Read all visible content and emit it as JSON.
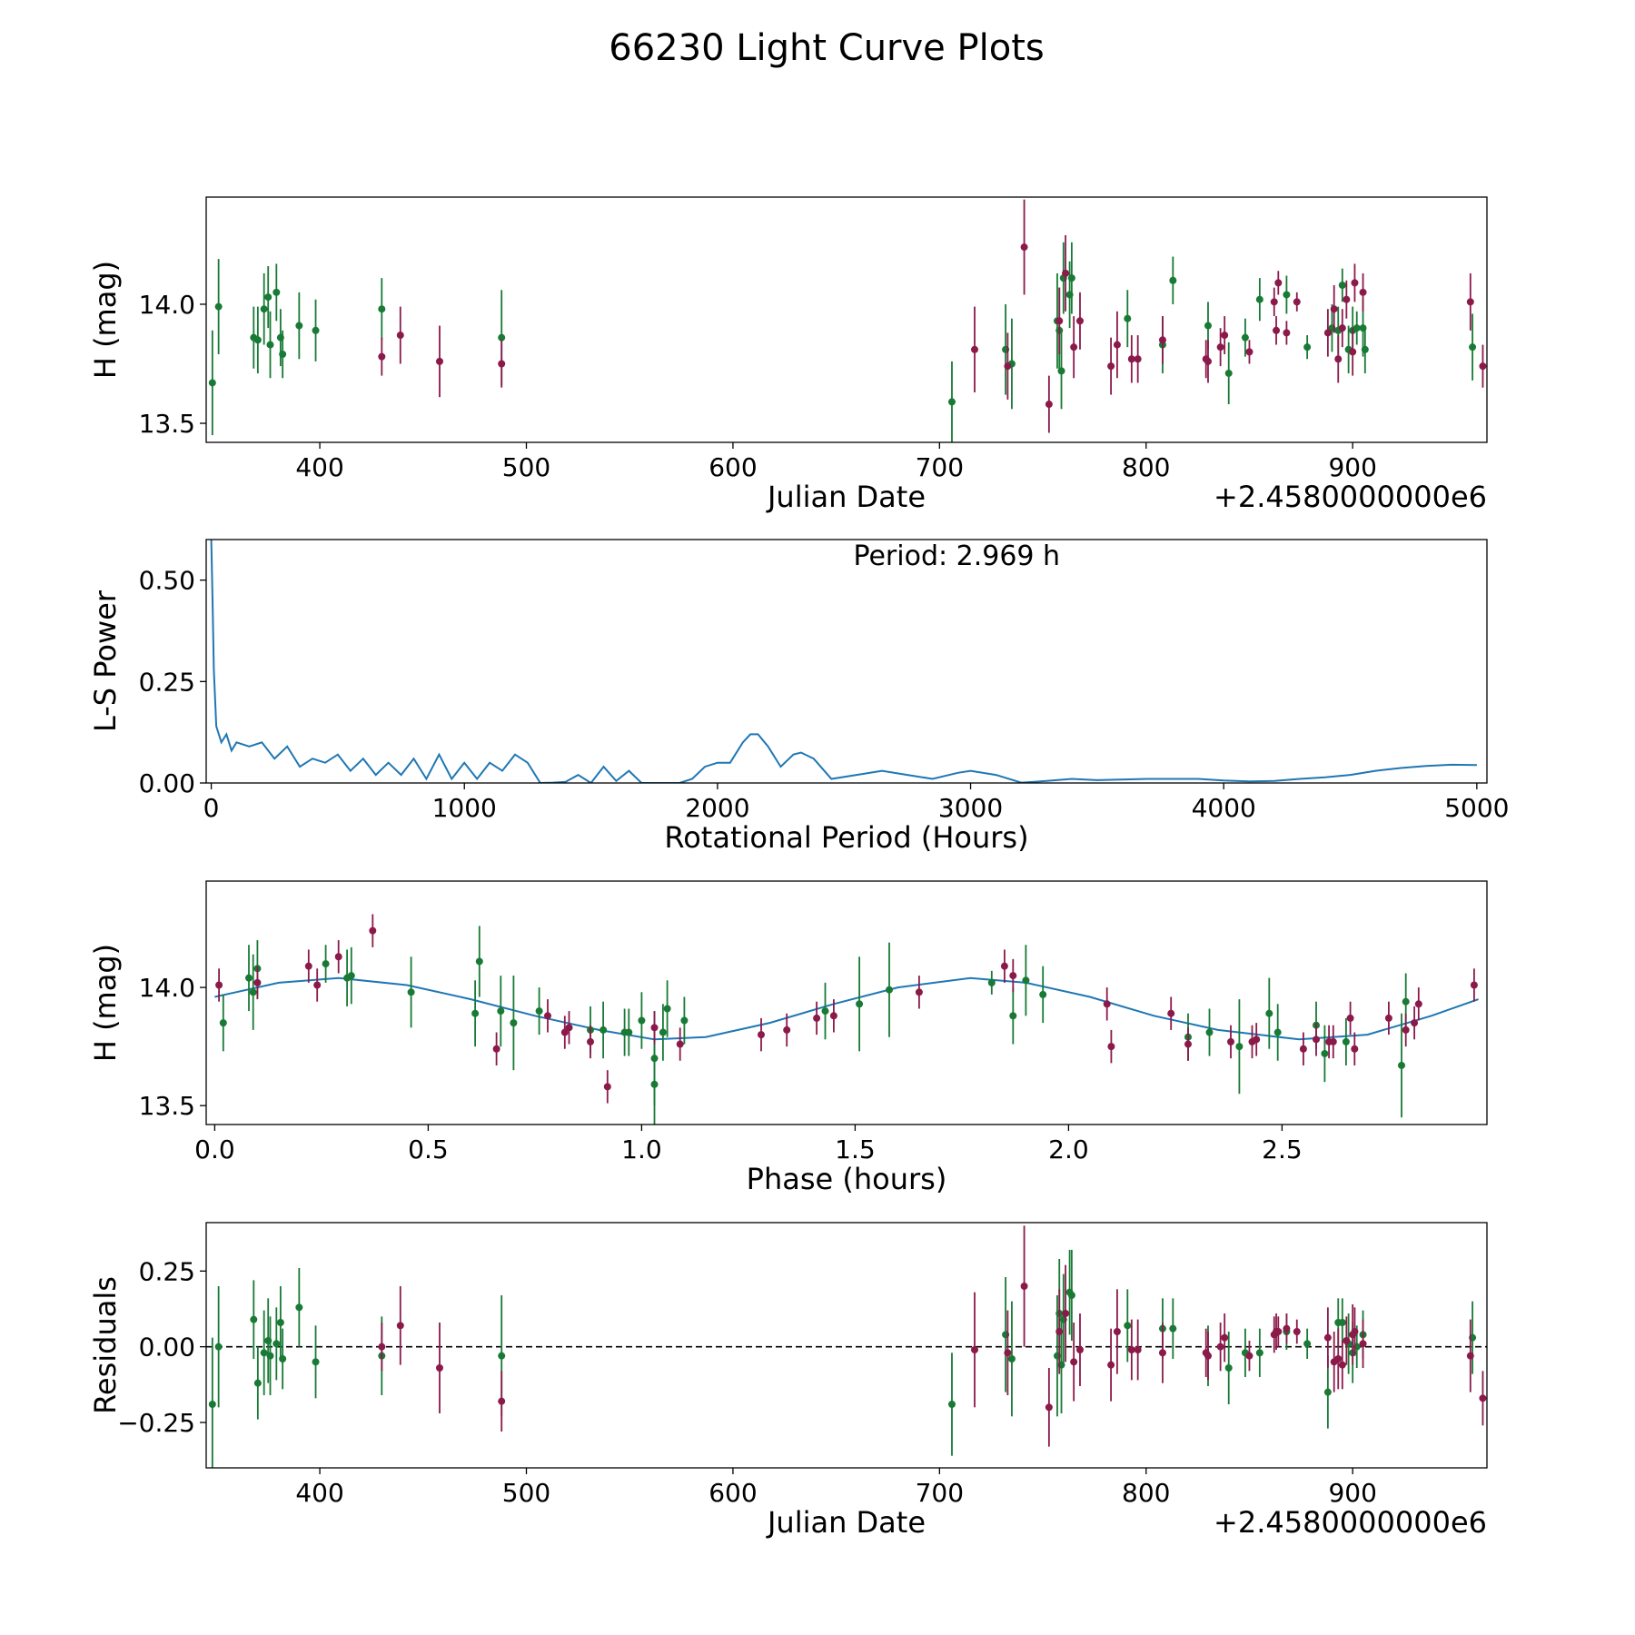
{
  "title": "66230 Light Curve Plots",
  "colors": {
    "green": "#187a35",
    "maroon": "#8b1a4b",
    "curve": "#1f77b4",
    "frame": "#000000"
  },
  "chart_data": [
    {
      "id": "lightcurve",
      "type": "scatter",
      "title": "",
      "xlabel": "Julian Date",
      "ylabel": "H (mag)",
      "offset_text": "+2.4580000000e6",
      "xlim": [
        345,
        965
      ],
      "ylim": [
        13.42,
        14.45
      ],
      "xticks": [
        400,
        500,
        600,
        700,
        800,
        900
      ],
      "xtick_labels": [
        "400",
        "500",
        "600",
        "700",
        "800",
        "900"
      ],
      "yticks": [
        13.5,
        14.0
      ],
      "ytick_labels": [
        "13.5",
        "14.0"
      ],
      "series": [
        {
          "name": "green",
          "color": "green",
          "x": [
            348,
            351,
            368,
            370,
            373,
            375,
            376,
            379,
            381,
            382,
            390,
            398,
            430,
            488,
            706,
            732,
            735,
            757,
            758,
            759,
            760,
            763,
            764,
            791,
            808,
            813,
            830,
            840,
            848,
            855,
            868,
            878,
            890,
            893,
            895,
            898,
            900,
            902,
            905,
            906,
            958
          ],
          "y": [
            13.67,
            13.99,
            13.86,
            13.85,
            13.98,
            14.03,
            13.83,
            14.05,
            13.86,
            13.79,
            13.91,
            13.89,
            13.98,
            13.86,
            13.59,
            13.81,
            13.75,
            13.93,
            13.89,
            13.72,
            14.11,
            14.04,
            14.11,
            13.94,
            13.83,
            14.1,
            13.91,
            13.71,
            13.86,
            14.02,
            14.04,
            13.82,
            13.9,
            13.89,
            14.08,
            13.81,
            13.89,
            13.9,
            13.9,
            13.81,
            13.82
          ],
          "err": [
            0.22,
            0.2,
            0.13,
            0.14,
            0.15,
            0.13,
            0.14,
            0.12,
            0.12,
            0.1,
            0.14,
            0.13,
            0.13,
            0.2,
            0.17,
            0.19,
            0.19,
            0.2,
            0.18,
            0.16,
            0.15,
            0.14,
            0.15,
            0.12,
            0.12,
            0.1,
            0.1,
            0.13,
            0.08,
            0.09,
            0.08,
            0.05,
            0.1,
            0.1,
            0.07,
            0.1,
            0.1,
            0.07,
            0.12,
            0.1,
            0.14
          ]
        },
        {
          "name": "maroon",
          "color": "maroon",
          "x": [
            430,
            439,
            458,
            488,
            717,
            733,
            741,
            753,
            758,
            761,
            765,
            768,
            783,
            786,
            793,
            796,
            808,
            829,
            830,
            836,
            838,
            850,
            862,
            863,
            864,
            868,
            873,
            888,
            891,
            893,
            895,
            897,
            900,
            901,
            905,
            957,
            963
          ],
          "y": [
            13.78,
            13.87,
            13.76,
            13.75,
            13.81,
            13.74,
            14.24,
            13.58,
            13.93,
            14.13,
            13.82,
            13.93,
            13.74,
            13.83,
            13.77,
            13.77,
            13.85,
            13.77,
            13.76,
            13.82,
            13.87,
            13.8,
            14.01,
            13.89,
            14.09,
            13.88,
            14.01,
            13.88,
            13.98,
            13.77,
            13.9,
            14.02,
            13.8,
            14.09,
            14.05,
            14.01,
            13.74
          ],
          "err": [
            0.08,
            0.12,
            0.15,
            0.1,
            0.18,
            0.14,
            0.2,
            0.12,
            0.14,
            0.16,
            0.13,
            0.12,
            0.12,
            0.14,
            0.1,
            0.1,
            0.1,
            0.08,
            0.09,
            0.08,
            0.08,
            0.05,
            0.06,
            0.06,
            0.05,
            0.05,
            0.04,
            0.1,
            0.1,
            0.1,
            0.08,
            0.08,
            0.1,
            0.08,
            0.08,
            0.12,
            0.09
          ]
        }
      ]
    },
    {
      "id": "periodogram",
      "type": "line",
      "title": "",
      "annotation": "Period: 2.969 h",
      "xlabel": "Rotational Period (Hours)",
      "ylabel": "L-S Power",
      "xlim": [
        -20,
        5040
      ],
      "ylim": [
        0,
        0.6
      ],
      "xticks": [
        0,
        1000,
        2000,
        3000,
        4000,
        5000
      ],
      "xtick_labels": [
        "0",
        "1000",
        "2000",
        "3000",
        "4000",
        "5000"
      ],
      "yticks": [
        0,
        0.25,
        0.5
      ],
      "ytick_labels": [
        "0.00",
        "0.25",
        "0.50"
      ],
      "color": "curve",
      "x": [
        0,
        5,
        10,
        20,
        40,
        60,
        80,
        100,
        150,
        200,
        250,
        300,
        350,
        400,
        450,
        500,
        550,
        600,
        650,
        700,
        750,
        800,
        850,
        900,
        950,
        1000,
        1050,
        1100,
        1150,
        1200,
        1250,
        1300,
        1350,
        1400,
        1450,
        1500,
        1550,
        1600,
        1650,
        1700,
        1750,
        1800,
        1850,
        1900,
        1950,
        2000,
        2050,
        2100,
        2130,
        2160,
        2200,
        2250,
        2300,
        2330,
        2380,
        2450,
        2550,
        2650,
        2750,
        2850,
        2950,
        3000,
        3100,
        3200,
        3300,
        3400,
        3500,
        3700,
        3900,
        4000,
        4100,
        4200,
        4300,
        4400,
        4500,
        4600,
        4700,
        4800,
        4900,
        5000
      ],
      "y": [
        0.6,
        0.45,
        0.28,
        0.14,
        0.1,
        0.12,
        0.08,
        0.1,
        0.09,
        0.1,
        0.06,
        0.09,
        0.04,
        0.06,
        0.05,
        0.07,
        0.03,
        0.06,
        0.02,
        0.05,
        0.02,
        0.06,
        0.01,
        0.07,
        0.01,
        0.05,
        0.01,
        0.05,
        0.03,
        0.07,
        0.05,
        0.0,
        0.001,
        0.003,
        0.02,
        0.0,
        0.04,
        0.005,
        0.03,
        0.0,
        0.0,
        0.0,
        0.0,
        0.01,
        0.04,
        0.05,
        0.05,
        0.1,
        0.12,
        0.12,
        0.09,
        0.04,
        0.07,
        0.075,
        0.06,
        0.01,
        0.02,
        0.03,
        0.02,
        0.01,
        0.025,
        0.03,
        0.02,
        0.001,
        0.005,
        0.01,
        0.007,
        0.01,
        0.01,
        0.006,
        0.004,
        0.005,
        0.01,
        0.014,
        0.02,
        0.03,
        0.037,
        0.042,
        0.045,
        0.044
      ]
    },
    {
      "id": "phased",
      "type": "scatter",
      "title": "",
      "xlabel": "Phase (hours)",
      "ylabel": "H (mag)",
      "xlim": [
        -0.02,
        2.98
      ],
      "ylim": [
        13.42,
        14.45
      ],
      "xticks": [
        0.0,
        0.5,
        1.0,
        1.5,
        2.0,
        2.5
      ],
      "xtick_labels": [
        "0.0",
        "0.5",
        "1.0",
        "1.5",
        "2.0",
        "2.5"
      ],
      "yticks": [
        13.5,
        14.0
      ],
      "ytick_labels": [
        "13.5",
        "14.0"
      ],
      "fit": {
        "name": "model",
        "color": "curve",
        "x": [
          0.0,
          0.15,
          0.29,
          0.45,
          0.6,
          0.75,
          0.9,
          1.03,
          1.15,
          1.3,
          1.45,
          1.6,
          1.77,
          1.9,
          2.05,
          2.2,
          2.35,
          2.54,
          2.7,
          2.85,
          2.96
        ],
        "y": [
          13.96,
          14.02,
          14.04,
          14.01,
          13.95,
          13.88,
          13.82,
          13.78,
          13.79,
          13.85,
          13.93,
          14.0,
          14.04,
          14.02,
          13.96,
          13.88,
          13.82,
          13.78,
          13.8,
          13.88,
          13.95
        ]
      },
      "series": [
        {
          "name": "green",
          "color": "green",
          "x": [
            0.02,
            0.08,
            0.09,
            0.1,
            0.26,
            0.31,
            0.32,
            0.46,
            0.61,
            0.62,
            0.67,
            0.7,
            0.76,
            0.88,
            0.91,
            0.96,
            0.97,
            1.0,
            1.03,
            1.03,
            1.05,
            1.06,
            1.1,
            1.43,
            1.51,
            1.58,
            1.82,
            1.87,
            1.9,
            1.94,
            2.28,
            2.33,
            2.4,
            2.47,
            2.49,
            2.58,
            2.6,
            2.65,
            2.78,
            2.79
          ],
          "y": [
            13.85,
            14.04,
            13.98,
            14.08,
            14.1,
            14.04,
            14.05,
            13.98,
            13.89,
            14.11,
            13.9,
            13.85,
            13.9,
            13.82,
            13.82,
            13.81,
            13.81,
            13.86,
            13.59,
            13.7,
            13.81,
            13.91,
            13.86,
            13.9,
            13.93,
            13.99,
            14.02,
            13.88,
            14.03,
            13.97,
            13.79,
            13.81,
            13.75,
            13.89,
            13.81,
            13.84,
            13.72,
            13.77,
            13.67,
            13.94
          ],
          "err": [
            0.12,
            0.14,
            0.16,
            0.12,
            0.08,
            0.12,
            0.12,
            0.15,
            0.14,
            0.15,
            0.15,
            0.2,
            0.1,
            0.1,
            0.12,
            0.1,
            0.1,
            0.12,
            0.2,
            0.2,
            0.12,
            0.12,
            0.1,
            0.12,
            0.2,
            0.2,
            0.05,
            0.12,
            0.15,
            0.12,
            0.1,
            0.1,
            0.2,
            0.15,
            0.12,
            0.1,
            0.12,
            0.1,
            0.22,
            0.12
          ]
        },
        {
          "name": "maroon",
          "color": "maroon",
          "x": [
            0.01,
            0.1,
            0.22,
            0.24,
            0.29,
            0.37,
            0.66,
            0.78,
            0.82,
            0.83,
            0.88,
            0.92,
            1.03,
            1.09,
            1.28,
            1.34,
            1.41,
            1.45,
            1.65,
            1.85,
            1.87,
            2.09,
            2.1,
            2.24,
            2.28,
            2.38,
            2.43,
            2.44,
            2.55,
            2.58,
            2.61,
            2.62,
            2.66,
            2.67,
            2.75,
            2.79,
            2.81,
            2.82,
            2.95
          ],
          "y": [
            14.01,
            14.02,
            14.09,
            14.01,
            14.13,
            14.24,
            13.74,
            13.88,
            13.81,
            13.83,
            13.77,
            13.58,
            13.83,
            13.76,
            13.8,
            13.82,
            13.87,
            13.88,
            13.98,
            14.09,
            14.05,
            13.93,
            13.75,
            13.89,
            13.76,
            13.77,
            13.77,
            13.78,
            13.74,
            13.78,
            13.77,
            13.77,
            13.87,
            13.74,
            13.87,
            13.82,
            13.85,
            13.93,
            14.01
          ]
        }
      ]
    },
    {
      "id": "residuals",
      "type": "scatter",
      "title": "",
      "xlabel": "Julian Date",
      "ylabel": "Residuals",
      "offset_text": "+2.4580000000e6",
      "xlim": [
        345,
        965
      ],
      "ylim": [
        -0.4,
        0.41
      ],
      "xticks": [
        400,
        500,
        600,
        700,
        800,
        900
      ],
      "xtick_labels": [
        "400",
        "500",
        "600",
        "700",
        "800",
        "900"
      ],
      "yticks": [
        -0.25,
        0,
        0.25
      ],
      "ytick_labels": [
        "−0.25",
        "0.00",
        "0.25"
      ],
      "zero_line": 0,
      "series": [
        {
          "name": "green",
          "color": "green",
          "x": [
            348,
            351,
            368,
            370,
            373,
            375,
            376,
            379,
            381,
            382,
            390,
            398,
            430,
            488,
            706,
            732,
            735,
            757,
            758,
            759,
            760,
            763,
            764,
            791,
            808,
            813,
            830,
            840,
            848,
            855,
            868,
            878,
            888,
            893,
            895,
            898,
            900,
            902,
            905,
            958
          ],
          "y": [
            -0.19,
            0.0,
            0.09,
            -0.12,
            -0.02,
            0.02,
            -0.03,
            0.01,
            0.08,
            -0.04,
            0.13,
            -0.05,
            -0.03,
            -0.03,
            -0.19,
            0.04,
            -0.04,
            -0.03,
            0.11,
            -0.06,
            0.09,
            0.18,
            0.17,
            0.07,
            0.06,
            0.06,
            -0.03,
            -0.07,
            -0.02,
            -0.02,
            0.05,
            0.01,
            -0.15,
            0.08,
            0.08,
            0.01,
            -0.02,
            0.0,
            0.04,
            0.03
          ],
          "err": [
            0.22,
            0.2,
            0.13,
            0.12,
            0.14,
            0.14,
            0.13,
            0.12,
            0.12,
            0.1,
            0.13,
            0.12,
            0.13,
            0.2,
            0.17,
            0.19,
            0.19,
            0.2,
            0.18,
            0.16,
            0.15,
            0.14,
            0.15,
            0.12,
            0.1,
            0.1,
            0.1,
            0.12,
            0.08,
            0.08,
            0.06,
            0.05,
            0.12,
            0.08,
            0.08,
            0.1,
            0.1,
            0.07,
            0.08,
            0.12
          ]
        },
        {
          "name": "maroon",
          "color": "maroon",
          "x": [
            430,
            439,
            458,
            488,
            717,
            733,
            741,
            753,
            758,
            761,
            765,
            768,
            783,
            786,
            793,
            796,
            808,
            829,
            830,
            836,
            838,
            850,
            862,
            863,
            864,
            868,
            873,
            888,
            891,
            893,
            895,
            897,
            900,
            901,
            905,
            957,
            963
          ],
          "y": [
            0.0,
            0.07,
            -0.07,
            -0.18,
            -0.01,
            -0.02,
            0.2,
            -0.2,
            0.05,
            0.11,
            -0.05,
            -0.01,
            -0.06,
            0.05,
            -0.01,
            -0.01,
            -0.02,
            -0.02,
            -0.03,
            0.0,
            0.03,
            -0.03,
            0.04,
            0.05,
            0.05,
            0.06,
            0.05,
            0.03,
            -0.05,
            -0.04,
            -0.06,
            0.02,
            0.04,
            0.05,
            0.01,
            -0.03,
            -0.17
          ],
          "err": [
            0.08,
            0.13,
            0.15,
            0.1,
            0.19,
            0.14,
            0.2,
            0.13,
            0.14,
            0.16,
            0.13,
            0.12,
            0.12,
            0.14,
            0.1,
            0.1,
            0.1,
            0.08,
            0.08,
            0.08,
            0.08,
            0.05,
            0.06,
            0.06,
            0.05,
            0.05,
            0.04,
            0.1,
            0.1,
            0.1,
            0.08,
            0.08,
            0.1,
            0.08,
            0.08,
            0.12,
            0.09
          ]
        }
      ]
    }
  ]
}
